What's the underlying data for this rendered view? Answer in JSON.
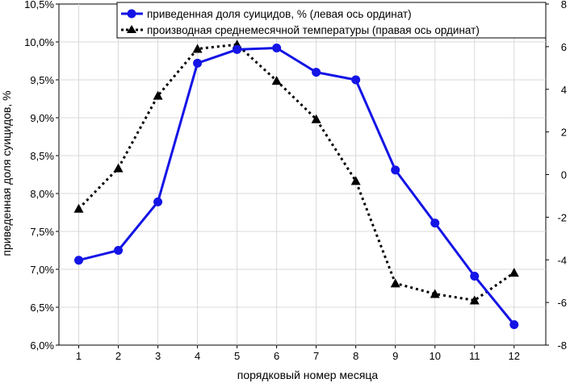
{
  "chart_data": {
    "type": "line",
    "title": "",
    "xlabel": "порядковый номер месяца",
    "ylabel": "приведенная доля суицидов, %",
    "categories": [
      "1",
      "2",
      "3",
      "4",
      "5",
      "6",
      "7",
      "8",
      "9",
      "10",
      "11",
      "12"
    ],
    "x": [
      1,
      2,
      3,
      4,
      5,
      6,
      7,
      8,
      9,
      10,
      11,
      12
    ],
    "xlim": [
      0.5,
      12.8
    ],
    "ylim_left": [
      6.0,
      10.5
    ],
    "ylim_right": [
      -8,
      8
    ],
    "left_ticks": [
      {
        "value": 6.0,
        "label": "6,0%"
      },
      {
        "value": 6.5,
        "label": "6,5%"
      },
      {
        "value": 7.0,
        "label": "7,0%"
      },
      {
        "value": 7.5,
        "label": "7,5%"
      },
      {
        "value": 8.0,
        "label": "8,0%"
      },
      {
        "value": 8.5,
        "label": "8,5%"
      },
      {
        "value": 9.0,
        "label": "9,0%"
      },
      {
        "value": 9.5,
        "label": "9,5%"
      },
      {
        "value": 10.0,
        "label": "10,0%"
      },
      {
        "value": 10.5,
        "label": "10,5%"
      }
    ],
    "right_ticks": [
      {
        "value": -8,
        "label": "-8"
      },
      {
        "value": -6,
        "label": "-6"
      },
      {
        "value": -4,
        "label": "-4"
      },
      {
        "value": -2,
        "label": "-2"
      },
      {
        "value": 0,
        "label": "0"
      },
      {
        "value": 2,
        "label": "2"
      },
      {
        "value": 4,
        "label": "4"
      },
      {
        "value": 6,
        "label": "6"
      },
      {
        "value": 8,
        "label": "8"
      }
    ],
    "grid": true,
    "legend_position": "top-right",
    "series": [
      {
        "name": "приведенная доля суицидов, % (левая ось ординат)",
        "axis": "left",
        "style": "solid",
        "marker": "circle",
        "color": "#1414e6",
        "values": [
          7.12,
          7.25,
          7.89,
          9.72,
          9.9,
          9.92,
          9.6,
          9.5,
          8.31,
          7.61,
          6.91,
          6.27
        ]
      },
      {
        "name": "производная среднемесячной температуры (правая ось ординат)",
        "axis": "right",
        "style": "dotted",
        "marker": "triangle",
        "color": "#000000",
        "values": [
          -1.6,
          0.3,
          3.7,
          5.9,
          6.1,
          4.4,
          2.6,
          -0.3,
          -5.1,
          -5.6,
          -5.9,
          -4.6
        ]
      }
    ]
  }
}
